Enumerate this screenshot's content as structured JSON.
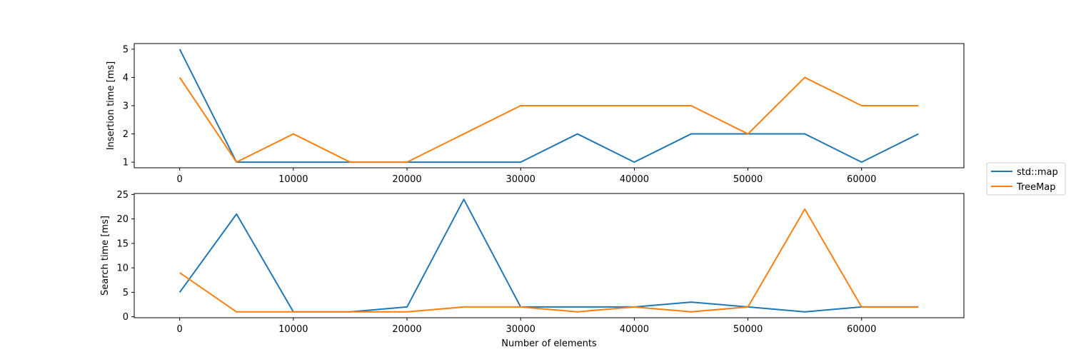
{
  "chart_data": [
    {
      "type": "line",
      "title": "",
      "xlabel": "",
      "ylabel": "Insertion time [ms]",
      "xlim": [
        -4000,
        69000
      ],
      "ylim": [
        0.8,
        5.2
      ],
      "x_ticks": [
        0,
        10000,
        20000,
        30000,
        40000,
        50000,
        60000
      ],
      "y_ticks": [
        1,
        2,
        3,
        4,
        5
      ],
      "grid": false,
      "x": [
        0,
        5000,
        10000,
        15000,
        20000,
        25000,
        30000,
        35000,
        40000,
        45000,
        50000,
        55000,
        60000,
        65000
      ],
      "series": [
        {
          "name": "std::map",
          "color": "#1f77b4",
          "values": [
            5,
            1,
            1,
            1,
            1,
            1,
            1,
            2,
            1,
            2,
            2,
            2,
            1,
            2
          ]
        },
        {
          "name": "TreeMap",
          "color": "#ff7f0e",
          "values": [
            4,
            1,
            2,
            1,
            1,
            2,
            3,
            3,
            3,
            3,
            2,
            4,
            3,
            3
          ]
        }
      ]
    },
    {
      "type": "line",
      "title": "",
      "xlabel": "Number of elements",
      "ylabel": "Search time [ms]",
      "xlim": [
        -4000,
        69000
      ],
      "ylim": [
        -0.2,
        25.2
      ],
      "x_ticks": [
        0,
        10000,
        20000,
        30000,
        40000,
        50000,
        60000
      ],
      "y_ticks": [
        0,
        5,
        10,
        15,
        20,
        25
      ],
      "grid": false,
      "x": [
        0,
        5000,
        10000,
        15000,
        20000,
        25000,
        30000,
        35000,
        40000,
        45000,
        50000,
        55000,
        60000,
        65000
      ],
      "series": [
        {
          "name": "std::map",
          "color": "#1f77b4",
          "values": [
            5,
            21,
            1,
            1,
            2,
            24,
            2,
            2,
            2,
            3,
            2,
            1,
            2,
            2
          ]
        },
        {
          "name": "TreeMap",
          "color": "#ff7f0e",
          "values": [
            9,
            1,
            1,
            1,
            1,
            2,
            2,
            1,
            2,
            1,
            2,
            22,
            2,
            2
          ]
        }
      ]
    }
  ],
  "legend": {
    "placement": "center-right",
    "entries": [
      {
        "label": "std::map",
        "color": "#1f77b4"
      },
      {
        "label": "TreeMap",
        "color": "#ff7f0e"
      }
    ]
  }
}
